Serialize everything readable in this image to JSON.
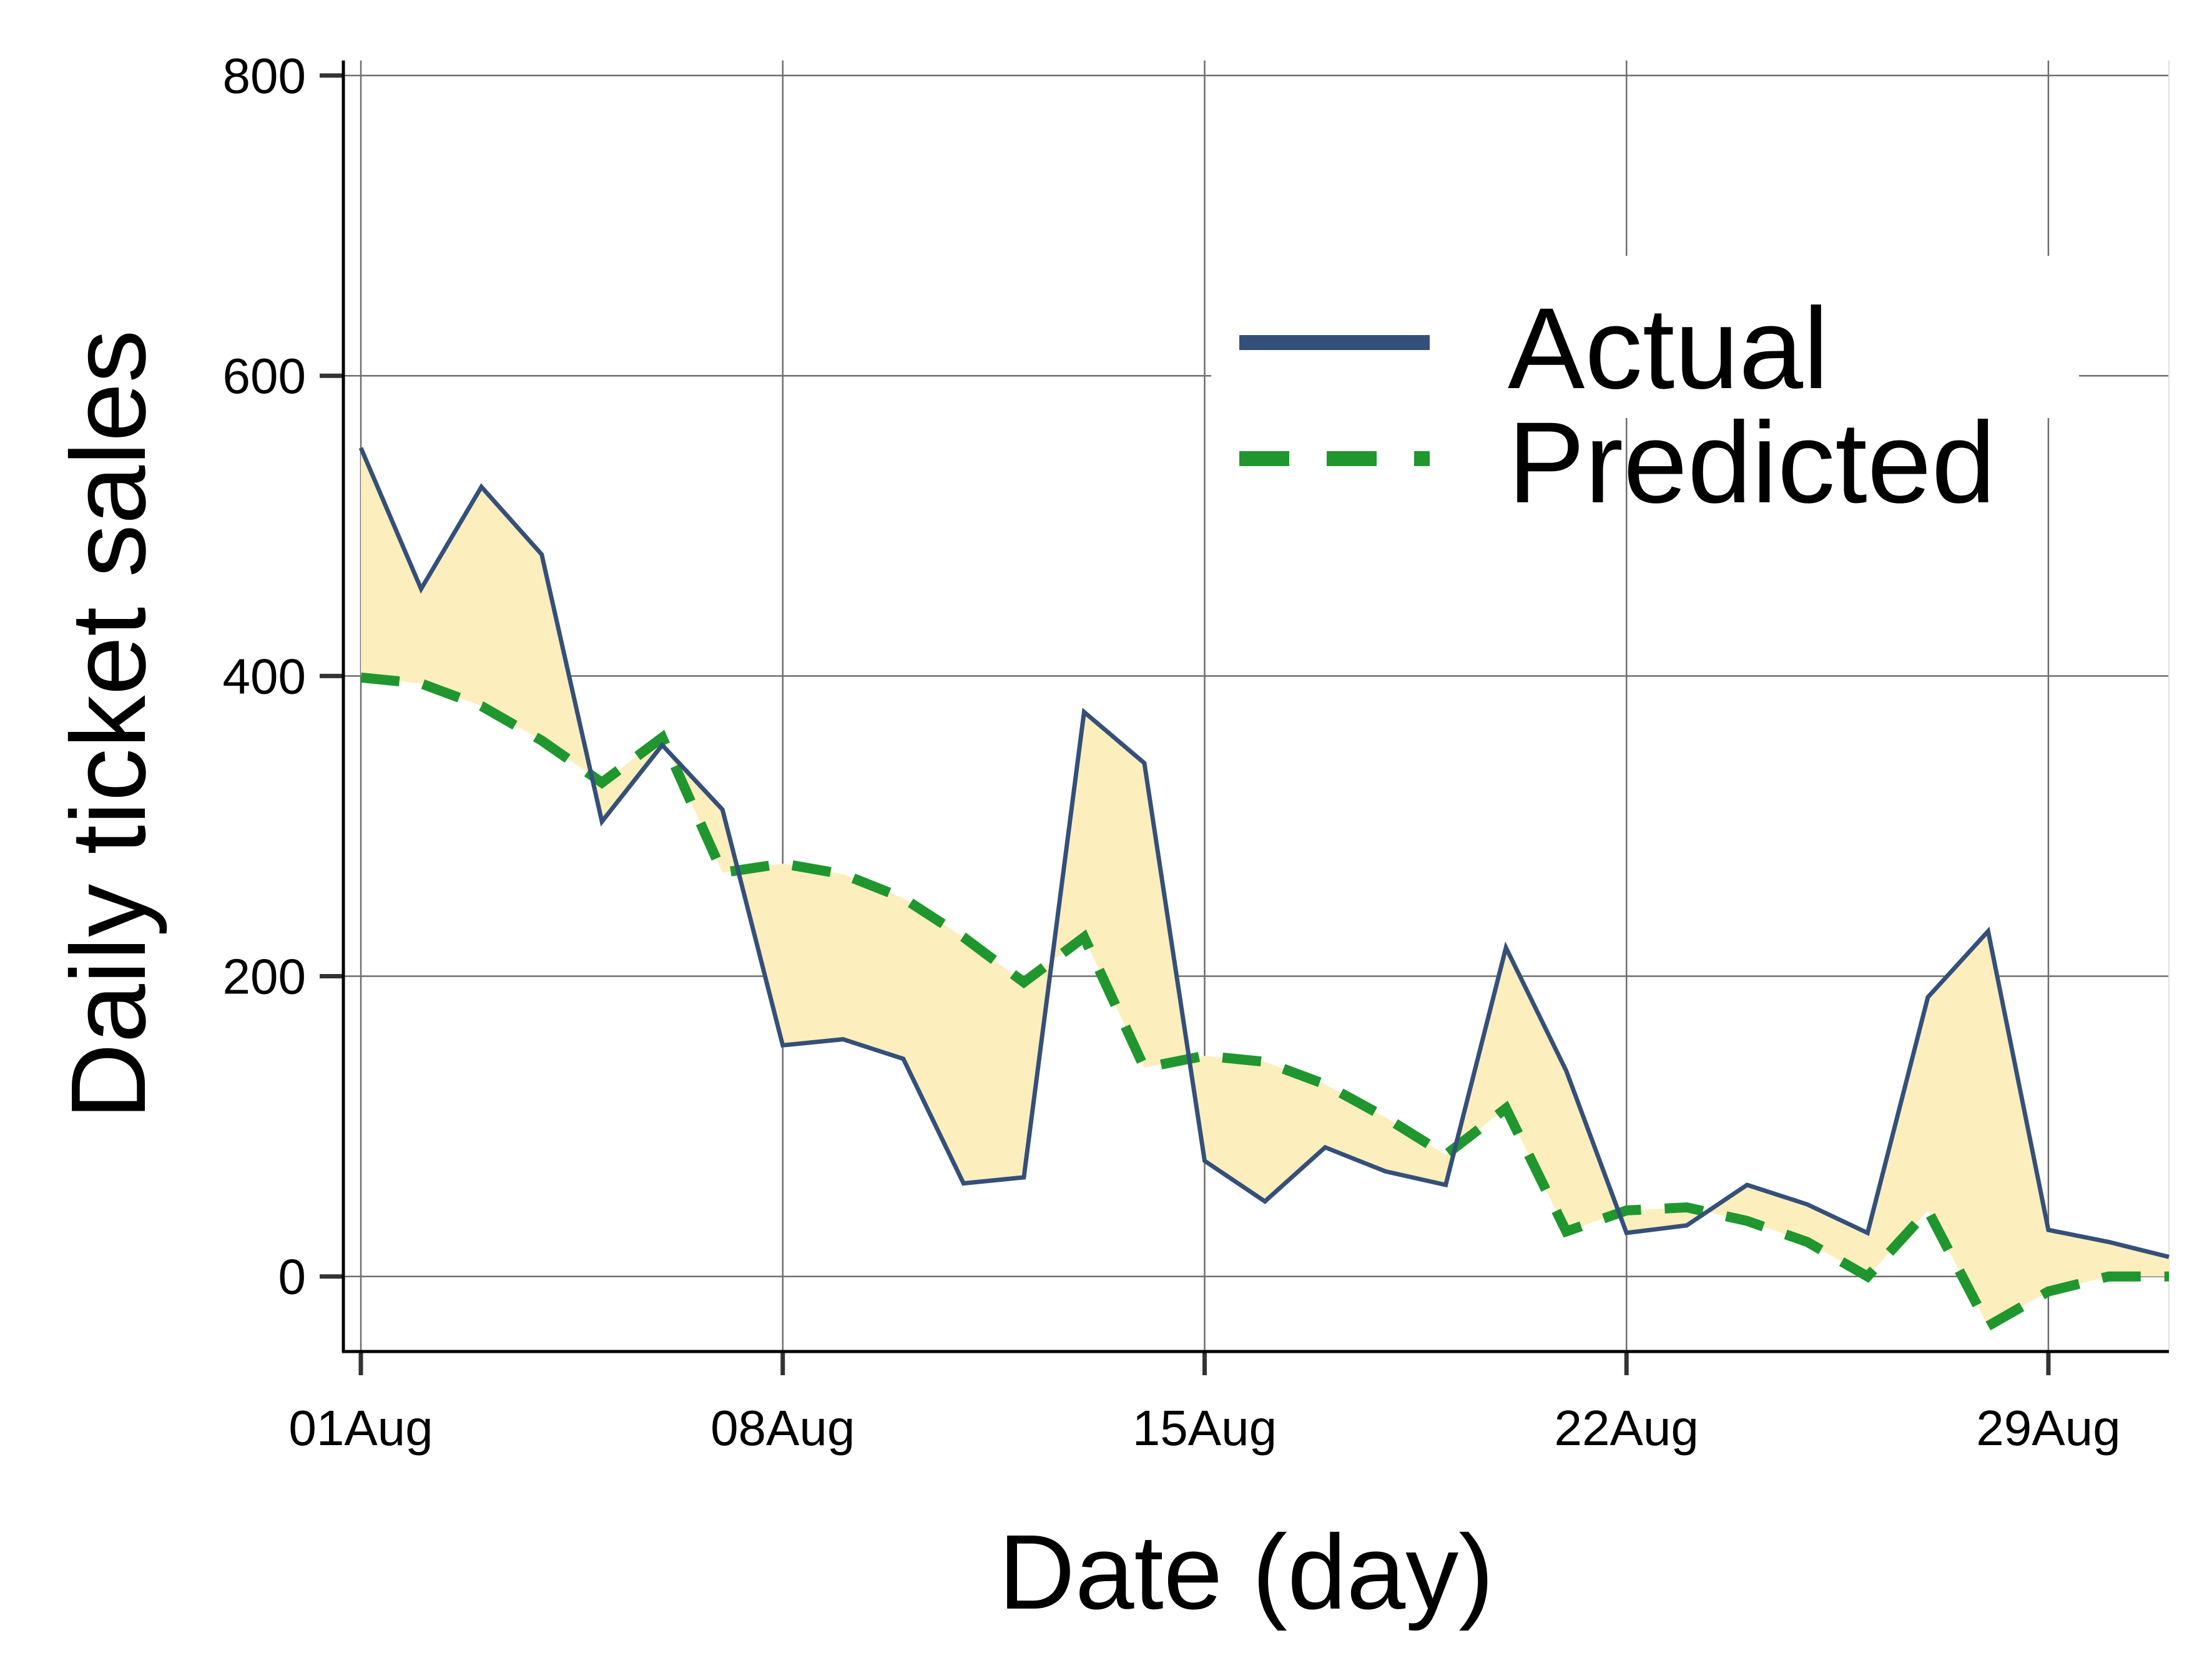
{
  "chart_data": {
    "type": "line",
    "xlabel": "Date (day)",
    "ylabel": "Daily ticket sales",
    "ylim": [
      -50,
      810
    ],
    "yticks": [
      0,
      200,
      400,
      600,
      800
    ],
    "xlim": [
      "2023-08-01",
      "2023-08-31"
    ],
    "xticks": [
      {
        "date": "2023-08-01",
        "label": "01Aug"
      },
      {
        "date": "2023-08-08",
        "label": "08Aug"
      },
      {
        "date": "2023-08-15",
        "label": "15Aug"
      },
      {
        "date": "2023-08-22",
        "label": "22Aug"
      },
      {
        "date": "2023-08-29",
        "label": "29Aug"
      }
    ],
    "x": [
      "2023-08-01",
      "2023-08-02",
      "2023-08-03",
      "2023-08-04",
      "2023-08-05",
      "2023-08-06",
      "2023-08-07",
      "2023-08-08",
      "2023-08-09",
      "2023-08-10",
      "2023-08-11",
      "2023-08-12",
      "2023-08-13",
      "2023-08-14",
      "2023-08-15",
      "2023-08-16",
      "2023-08-17",
      "2023-08-18",
      "2023-08-19",
      "2023-08-20",
      "2023-08-21",
      "2023-08-22",
      "2023-08-23",
      "2023-08-24",
      "2023-08-25",
      "2023-08-26",
      "2023-08-27",
      "2023-08-28",
      "2023-08-29",
      "2023-08-30",
      "2023-08-31"
    ],
    "series": [
      {
        "name": "Actual",
        "color": "#34507a",
        "style": "solid",
        "values": [
          552,
          458,
          526,
          481,
          303,
          354,
          311,
          154,
          158,
          145,
          62,
          66,
          376,
          342,
          77,
          50,
          86,
          70,
          61,
          219,
          137,
          29,
          34,
          61,
          48,
          29,
          186,
          230,
          31,
          23,
          13
        ]
      },
      {
        "name": "Predicted",
        "color": "#20962e",
        "style": "dashed",
        "values": [
          399,
          395,
          380,
          357,
          329,
          359,
          269,
          275,
          268,
          252,
          226,
          196,
          226,
          139,
          147,
          143,
          128,
          106,
          81,
          112,
          30,
          44,
          46,
          37,
          23,
          0,
          44,
          -33,
          -10,
          0,
          0
        ]
      }
    ],
    "fill_between": {
      "color": "#fdeebd"
    },
    "grid": true,
    "legend": {
      "position": "top-right",
      "entries": [
        "Actual",
        "Predicted"
      ]
    }
  }
}
